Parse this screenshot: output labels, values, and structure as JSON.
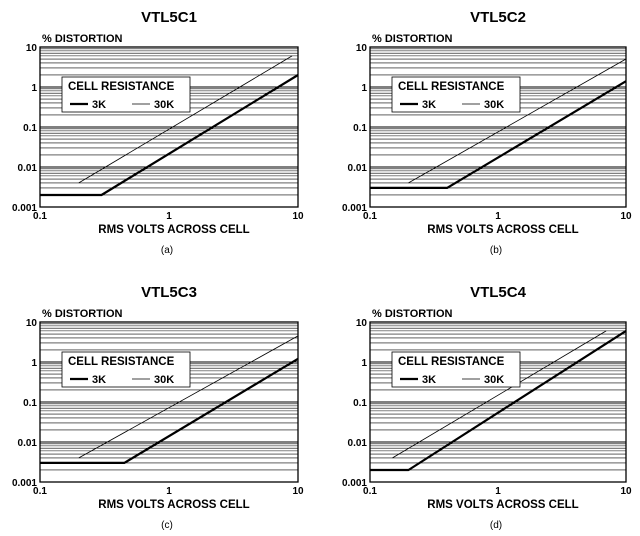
{
  "chart_data": [
    {
      "type": "line",
      "title": "VTL5C1",
      "ylabel": "% DISTORTION",
      "xlabel": "RMS VOLTS ACROSS CELL",
      "caption": "(a)",
      "x_scale": "log",
      "y_scale": "log",
      "xlim": [
        0.1,
        10
      ],
      "ylim": [
        0.001,
        10
      ],
      "x_tick_labels": [
        "0.1",
        "1",
        "10"
      ],
      "y_tick_labels": [
        "0.001",
        "0.01",
        "0.1",
        "1",
        "10"
      ],
      "grid": "horizontal",
      "legend": {
        "title": "CELL RESISTANCE",
        "placement": "top-left"
      },
      "series": [
        {
          "name": "3K",
          "style": "thick",
          "x": [
            0.1,
            0.3,
            10
          ],
          "y": [
            0.002,
            0.002,
            2.0
          ]
        },
        {
          "name": "30K",
          "style": "thin",
          "x": [
            0.2,
            9.0
          ],
          "y": [
            0.004,
            6.0
          ]
        }
      ]
    },
    {
      "type": "line",
      "title": "VTL5C2",
      "ylabel": "% DISTORTION",
      "xlabel": "RMS VOLTS ACROSS CELL",
      "caption": "(b)",
      "x_scale": "log",
      "y_scale": "log",
      "xlim": [
        0.1,
        10
      ],
      "ylim": [
        0.001,
        10
      ],
      "x_tick_labels": [
        "0.1",
        "1",
        "10"
      ],
      "y_tick_labels": [
        "0.001",
        "0.01",
        "0.1",
        "1",
        "10"
      ],
      "grid": "horizontal",
      "legend": {
        "title": "CELL RESISTANCE",
        "placement": "top-left"
      },
      "series": [
        {
          "name": "3K",
          "style": "thick",
          "x": [
            0.1,
            0.4,
            10
          ],
          "y": [
            0.003,
            0.003,
            1.4
          ]
        },
        {
          "name": "30K",
          "style": "thin",
          "x": [
            0.2,
            10
          ],
          "y": [
            0.004,
            5.0
          ]
        }
      ]
    },
    {
      "type": "line",
      "title": "VTL5C3",
      "ylabel": "% DISTORTION",
      "xlabel": "RMS VOLTS ACROSS CELL",
      "caption": "(c)",
      "x_scale": "log",
      "y_scale": "log",
      "xlim": [
        0.1,
        10
      ],
      "ylim": [
        0.001,
        10
      ],
      "x_tick_labels": [
        "0.1",
        "1",
        "10"
      ],
      "y_tick_labels": [
        "0.001",
        "0.01",
        "0.1",
        "1",
        "10"
      ],
      "grid": "horizontal",
      "legend": {
        "title": "CELL RESISTANCE",
        "placement": "top-left"
      },
      "series": [
        {
          "name": "3K",
          "style": "thick",
          "x": [
            0.1,
            0.45,
            10
          ],
          "y": [
            0.003,
            0.003,
            1.2
          ]
        },
        {
          "name": "30K",
          "style": "thin",
          "x": [
            0.2,
            10
          ],
          "y": [
            0.004,
            4.5
          ]
        }
      ]
    },
    {
      "type": "line",
      "title": "VTL5C4",
      "ylabel": "% DISTORTION",
      "xlabel": "RMS VOLTS ACROSS CELL",
      "caption": "(d)",
      "x_scale": "log",
      "y_scale": "log",
      "xlim": [
        0.1,
        10
      ],
      "ylim": [
        0.001,
        10
      ],
      "x_tick_labels": [
        "0.1",
        "1",
        "10"
      ],
      "y_tick_labels": [
        "0.001",
        "0.01",
        "0.1",
        "1",
        "10"
      ],
      "grid": "horizontal",
      "legend": {
        "title": "CELL RESISTANCE",
        "placement": "top-left"
      },
      "series": [
        {
          "name": "3K",
          "style": "thick",
          "x": [
            0.1,
            0.2,
            10
          ],
          "y": [
            0.002,
            0.002,
            6.0
          ]
        },
        {
          "name": "30K",
          "style": "thin",
          "x": [
            0.15,
            7.0
          ],
          "y": [
            0.004,
            6.0
          ]
        }
      ]
    }
  ]
}
